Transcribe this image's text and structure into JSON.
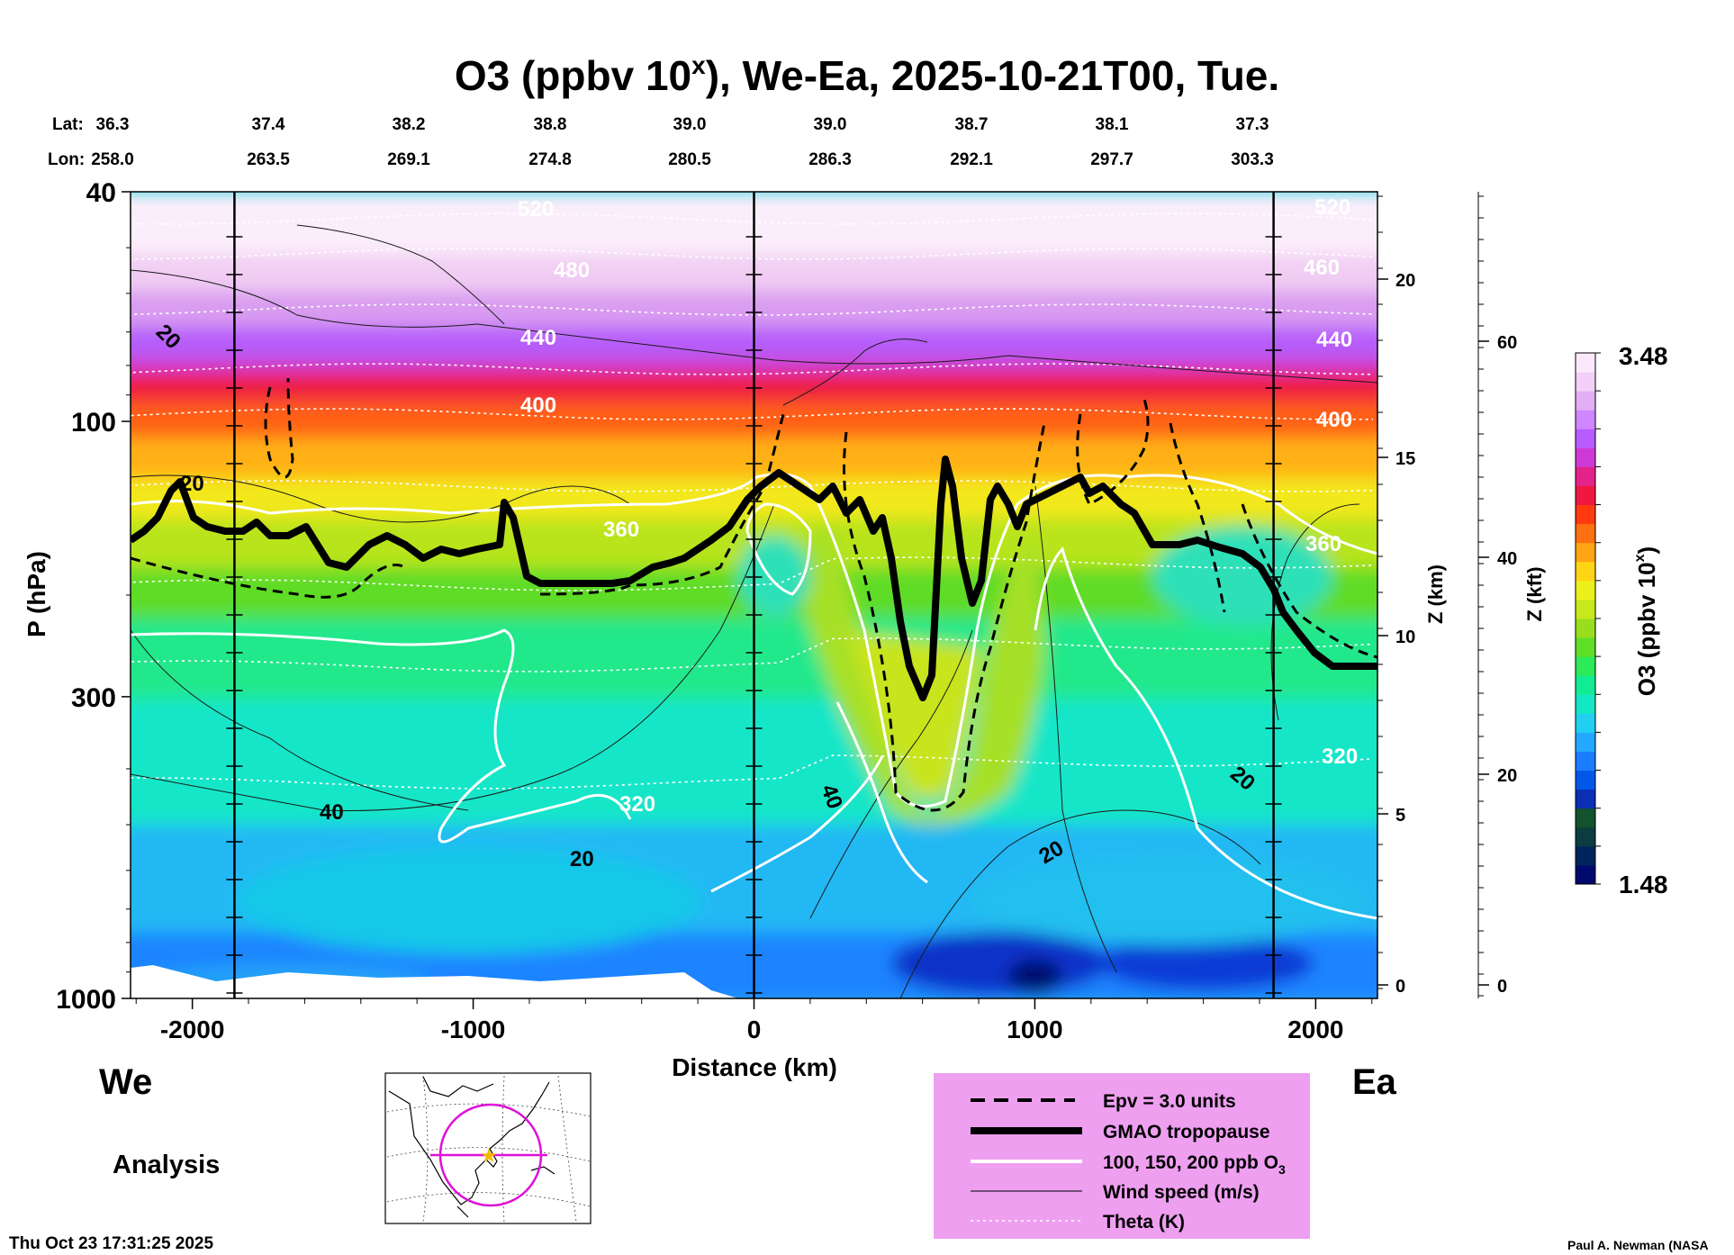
{
  "chart_data": {
    "type": "heatmap",
    "title": "O3 (ppbv 10",
    "title_sup": "x",
    "title_rest": "), We-Ea, 2025-10-21T00, Tue.",
    "lat_label": "Lat:",
    "lon_label": "Lon:",
    "lats": [
      "36.3",
      "37.4",
      "38.2",
      "38.8",
      "39.0",
      "39.0",
      "38.7",
      "38.1",
      "37.3"
    ],
    "lons": [
      "258.0",
      "263.5",
      "269.1",
      "274.8",
      "280.5",
      "286.3",
      "292.1",
      "297.7",
      "303.3"
    ],
    "xlabel": "Distance (km)",
    "xlim": [
      -2220,
      2220
    ],
    "x_ticks": [
      -2000,
      -1000,
      0,
      1000,
      2000
    ],
    "x_tick_labels": [
      "-2000",
      "-1000",
      "0",
      "1000",
      "2000"
    ],
    "ylabel": "P (hPa)",
    "ylim": [
      1000,
      40
    ],
    "y_ticks": [
      40,
      100,
      300,
      1000
    ],
    "y_tick_labels": [
      "40",
      "100",
      "300",
      "1000"
    ],
    "z_km_label": "Z (km)",
    "z_km_ticks": [
      "20",
      "15",
      "10",
      "5",
      "0"
    ],
    "z_kft_label": "Z (kft)",
    "z_kft_ticks": [
      "60",
      "40",
      "20",
      "0"
    ],
    "vertical_lines_km": [
      -1850,
      0,
      1850
    ],
    "colorbar": {
      "label": "O3 (ppbv 10",
      "label_sup": "x",
      "label_rest": ")",
      "max_label": "3.48",
      "min_label": "1.48",
      "colors": [
        "#000a6e",
        "#00235c",
        "#0b3d40",
        "#12522c",
        "#0a2fb3",
        "#0057e8",
        "#1a7dff",
        "#24a8ff",
        "#21d0f0",
        "#14e7c4",
        "#10ec94",
        "#2cea58",
        "#5fde28",
        "#97de1e",
        "#c8e81c",
        "#ecf01a",
        "#ffd414",
        "#ffa414",
        "#ff7010",
        "#ff3a10",
        "#f01840",
        "#e4238a",
        "#cf3ad7",
        "#b85cff",
        "#cf86ff",
        "#e2aef6",
        "#f2d0f7",
        "#fbe9fb"
      ]
    },
    "theta_labels": [
      "520",
      "480",
      "440",
      "400",
      "360",
      "320",
      "520",
      "460",
      "440",
      "400",
      "360",
      "320"
    ],
    "wind_labels": [
      "20",
      "40",
      "20",
      "40",
      "20",
      "20",
      "20"
    ],
    "ozone_labels": [],
    "side_left": "We",
    "side_right": "Ea",
    "analysis_label": "Analysis"
  },
  "legend": {
    "items": [
      {
        "label": "Epv = 3.0 units",
        "style": "dashed-black"
      },
      {
        "label": "GMAO tropopause",
        "style": "thick-black"
      },
      {
        "label": "100, 150, 200 ppb O",
        "sub": "3",
        "style": "white"
      },
      {
        "label": "Wind speed (m/s)",
        "style": "thin-black"
      },
      {
        "label": "Theta (K)",
        "style": "dotted-white"
      }
    ]
  },
  "footer": {
    "timestamp": "Thu Oct 23 17:31:25 2025",
    "credit": "Paul A. Newman (NASA"
  }
}
